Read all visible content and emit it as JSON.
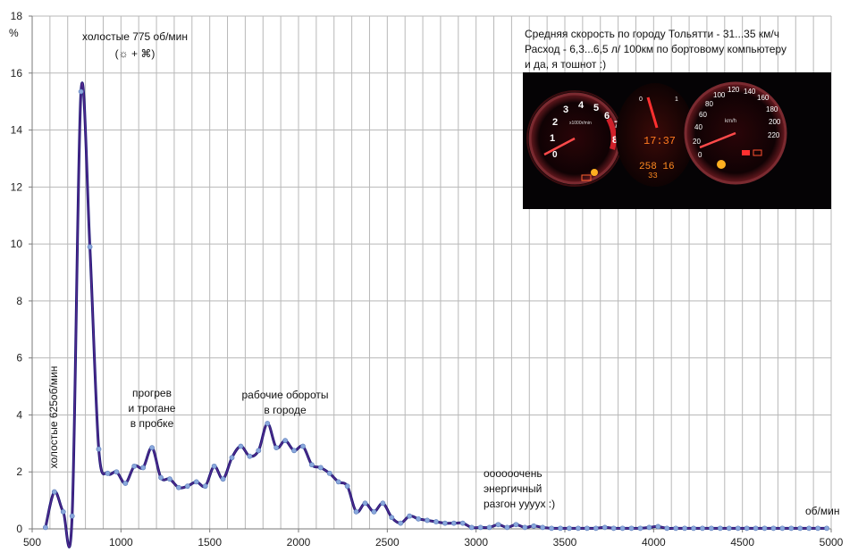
{
  "chart_data": {
    "type": "line",
    "title": "",
    "xlabel": "об/мин",
    "ylabel": "%",
    "xlim": [
      500,
      5000
    ],
    "ylim": [
      0,
      18
    ],
    "x_ticks": [
      500,
      1000,
      1500,
      2000,
      2500,
      3000,
      3500,
      4000,
      4500,
      5000
    ],
    "y_ticks": [
      0,
      2,
      4,
      6,
      8,
      10,
      12,
      14,
      16,
      18
    ],
    "grid": "vertical lines every 100 rpm, horizontal lines every 2%",
    "legend": "none",
    "series": [
      {
        "color": "#1a1a7a",
        "point_color": "#8aa8dc",
        "x": [
          575,
          625,
          675,
          725,
          775,
          825,
          875,
          925,
          975,
          1025,
          1075,
          1125,
          1175,
          1225,
          1275,
          1325,
          1375,
          1425,
          1475,
          1525,
          1575,
          1625,
          1675,
          1725,
          1775,
          1825,
          1875,
          1925,
          1975,
          2025,
          2075,
          2125,
          2175,
          2225,
          2275,
          2325,
          2375,
          2425,
          2475,
          2525,
          2575,
          2625,
          2675,
          2725,
          2775,
          2825,
          2875,
          2925,
          2975,
          3025,
          3075,
          3125,
          3175,
          3225,
          3275,
          3325,
          3375,
          3425,
          3475,
          3525,
          3575,
          3625,
          3675,
          3725,
          3775,
          3825,
          3875,
          3925,
          3975,
          4025,
          4075,
          4125,
          4175,
          4225,
          4275,
          4325,
          4375,
          4425,
          4475,
          4525,
          4575,
          4625,
          4675,
          4725,
          4775,
          4825,
          4875,
          4925,
          4975
        ],
        "y": [
          0.05,
          1.3,
          0.6,
          0.45,
          15.35,
          9.9,
          2.8,
          1.95,
          2.0,
          1.6,
          2.2,
          2.15,
          2.85,
          1.8,
          1.75,
          1.45,
          1.5,
          1.65,
          1.5,
          2.2,
          1.75,
          2.5,
          2.9,
          2.55,
          2.75,
          3.7,
          2.85,
          3.1,
          2.75,
          2.9,
          2.25,
          2.15,
          1.95,
          1.65,
          1.5,
          0.6,
          0.9,
          0.6,
          0.9,
          0.4,
          0.2,
          0.45,
          0.35,
          0.3,
          0.25,
          0.2,
          0.2,
          0.2,
          0.05,
          0.05,
          0.05,
          0.15,
          0.05,
          0.15,
          0.05,
          0.1,
          0.05,
          0.02,
          0.02,
          0.02,
          0.02,
          0.02,
          0.02,
          0.05,
          0.02,
          0.02,
          0.02,
          0.02,
          0.05,
          0.08,
          0.02,
          0.02,
          0.02,
          0.02,
          0.02,
          0.02,
          0.02,
          0.02,
          0.02,
          0.02,
          0.02,
          0.02,
          0.02,
          0.02,
          0.02,
          0.02,
          0.02,
          0.02,
          0.02
        ]
      }
    ],
    "annotations": {
      "idle_775_line1": "холостые 775 об/мин",
      "idle_775_line2": "(☼ + ⌘)",
      "idle_625": "холостые 625об/мин",
      "warmup_line1": "прогрев",
      "warmup_line2": "и трогане",
      "warmup_line3": "в пробке",
      "city_line1": "рабочие обороты",
      "city_line2": "в городе",
      "accel_line1": "оооооочень",
      "accel_line2": "энергичный",
      "accel_line3": "разгон ууууx :)",
      "info_line1": "Средняя скорость по городу Тольятти - 31...35 км/ч",
      "info_line2": "Расход  - 6,3...6,5 л/ 100км по бортовому компьютеру",
      "info_line3": "и да, я тошнот :)"
    }
  },
  "dashboard_photo": {
    "tach_numbers": [
      "1",
      "2",
      "3",
      "4",
      "5",
      "6",
      "7",
      "8",
      "0"
    ],
    "tach_unit": "x1000r/min",
    "speedo_numbers": [
      "20",
      "40",
      "60",
      "80",
      "100",
      "120",
      "140",
      "160",
      "180",
      "200",
      "220",
      "0"
    ],
    "speedo_unit": "km/h",
    "fuel_marks": [
      "0",
      "1"
    ],
    "clock": "17:37",
    "odometer": "258 16",
    "trip": "33"
  }
}
